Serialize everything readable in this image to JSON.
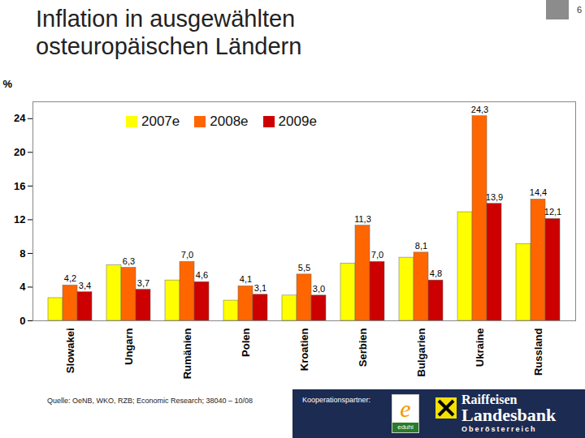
{
  "chart_data": {
    "type": "bar",
    "title": "Inflation in ausgewählten osteuropäischen Ländern",
    "y_label": "%",
    "categories": [
      "Slowakei",
      "Ungarn",
      "Rumänien",
      "Polen",
      "Kroatien",
      "Serbien",
      "Bulgarien",
      "Ukraine",
      "Russland"
    ],
    "series": [
      {
        "name": "2007e",
        "color": "#ffff00",
        "values": [
          2.7,
          6.6,
          4.8,
          2.4,
          3.0,
          6.8,
          7.5,
          12.9,
          9.1
        ],
        "value_labels": [
          null,
          null,
          null,
          null,
          null,
          null,
          null,
          null,
          null
        ]
      },
      {
        "name": "2008e",
        "color": "#ff6600",
        "values": [
          4.2,
          6.3,
          7.0,
          4.1,
          5.5,
          11.3,
          8.1,
          24.3,
          14.4
        ],
        "value_labels": [
          "4,2",
          "6,3",
          "7,0",
          "4,1",
          "5,5",
          "11,3",
          "8,1",
          "24,3",
          "14,4"
        ]
      },
      {
        "name": "2009e",
        "color": "#cc0000",
        "values": [
          3.4,
          3.7,
          4.6,
          3.1,
          3.0,
          7.0,
          4.8,
          13.9,
          12.1
        ],
        "value_labels": [
          "3,4",
          "3,7",
          "4,6",
          "3,1",
          "3,0",
          "7,0",
          "4,8",
          "13,9",
          "12,1"
        ]
      }
    ],
    "ylim": [
      0,
      26
    ],
    "yticks": [
      0,
      4,
      8,
      12,
      16,
      20,
      24
    ],
    "data_labels": true,
    "legend": "top",
    "source": "Quelle: OeNB, WKO, RZB; Economic Research; 38040 – 10/08",
    "page_number": "6",
    "footer": {
      "partner_label": "Kooperationspartner:",
      "eduhi": [
        "e",
        "eduhi"
      ],
      "bank": [
        "Raiffeisen",
        "Landesbank",
        "Oberösterreich"
      ]
    }
  }
}
